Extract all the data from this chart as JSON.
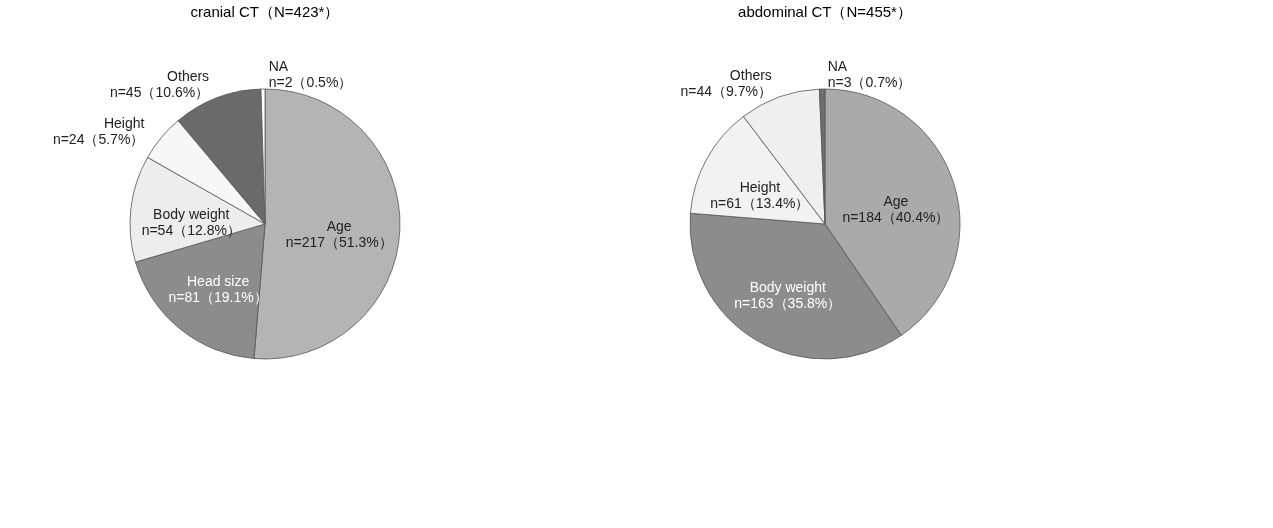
{
  "chart_data": [
    {
      "type": "pie",
      "title": "cranial CT（N=423*）",
      "categories": [
        "Age",
        "Head size",
        "Body weight",
        "Height",
        "Others",
        "NA"
      ],
      "values": [
        217,
        81,
        54,
        24,
        45,
        2
      ],
      "value_labels": [
        "n=217（51.3%）",
        "n=81（19.1%）",
        "n=54（12.8%）",
        "n=24（5.7%）",
        "n=45（10.6%）",
        "n=2（0.5%）"
      ],
      "colors": [
        "#b4b4b4",
        "#8c8c8c",
        "#ededed",
        "#f7f7f7",
        "#6a6a6a",
        "#ffffff"
      ],
      "legend": false
    },
    {
      "type": "pie",
      "title": "abdominal CT（N=455*）",
      "categories": [
        "Age",
        "Body weight",
        "Height",
        "Others",
        "NA"
      ],
      "values": [
        184,
        163,
        61,
        44,
        3
      ],
      "value_labels": [
        "n=184（40.4%）",
        "n=163（35.8%）",
        "n=61（13.4%）",
        "n=44（9.7%）",
        "n=3（0.7%）"
      ],
      "colors": [
        "#aaaaaa",
        "#8c8c8c",
        "#f2f2f2",
        "#efefef",
        "#6e6e6e"
      ],
      "legend": false
    }
  ]
}
